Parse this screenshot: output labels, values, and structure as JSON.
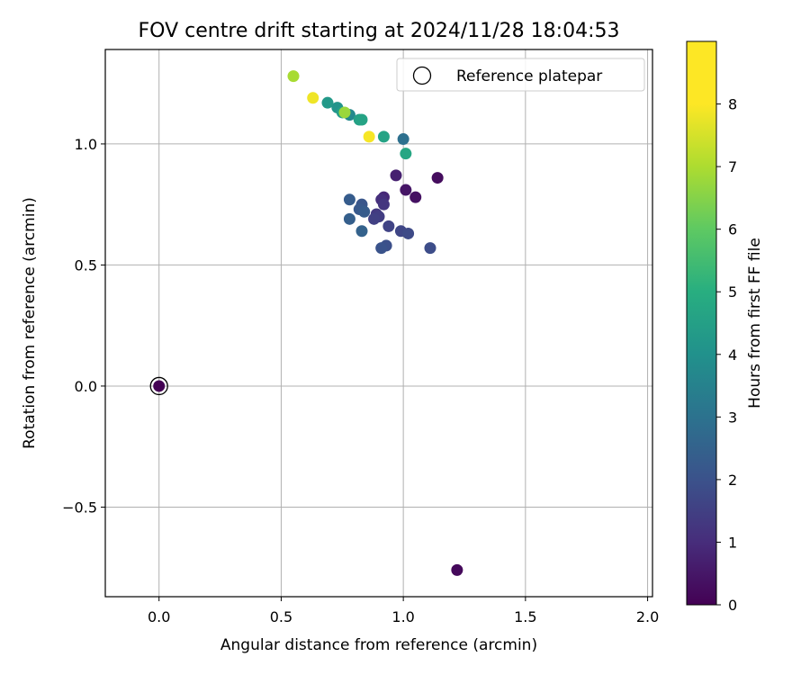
{
  "chart_data": {
    "type": "scatter",
    "title": "FOV centre drift starting at 2024/11/28 18:04:53",
    "xlabel": "Angular distance from reference (arcmin)",
    "ylabel": "Rotation from reference (arcmin)",
    "xlim": [
      -0.22,
      2.02
    ],
    "ylim": [
      -0.87,
      1.39
    ],
    "xticks": [
      0.0,
      0.5,
      1.0,
      1.5,
      2.0
    ],
    "xtick_labels": [
      "0.0",
      "0.5",
      "1.0",
      "1.5",
      "2.0"
    ],
    "yticks": [
      -0.5,
      0.0,
      0.5,
      1.0
    ],
    "ytick_labels": [
      "−0.5",
      "0.0",
      "0.5",
      "1.0"
    ],
    "grid": true,
    "legend": {
      "position": "top-right",
      "entries": [
        "Reference platepar"
      ]
    },
    "reference_point": {
      "x": 0.0,
      "y": 0.0,
      "color_value": 0.0
    },
    "colorbar": {
      "label": "Hours from first FF file",
      "colormap": "viridis",
      "range": [
        0,
        9
      ],
      "ticks": [
        0,
        1,
        2,
        3,
        4,
        5,
        6,
        7,
        8
      ],
      "tick_labels": [
        "0",
        "1",
        "2",
        "3",
        "4",
        "5",
        "6",
        "7",
        "8"
      ]
    },
    "points": [
      {
        "x": 1.22,
        "y": -0.76,
        "c": 0.2
      },
      {
        "x": 1.14,
        "y": 0.86,
        "c": 0.3
      },
      {
        "x": 1.05,
        "y": 0.78,
        "c": 0.4
      },
      {
        "x": 1.01,
        "y": 0.81,
        "c": 0.5
      },
      {
        "x": 0.97,
        "y": 0.87,
        "c": 0.8
      },
      {
        "x": 0.92,
        "y": 0.78,
        "c": 1.0
      },
      {
        "x": 0.91,
        "y": 0.77,
        "c": 1.2
      },
      {
        "x": 0.92,
        "y": 0.75,
        "c": 1.4
      },
      {
        "x": 0.89,
        "y": 0.71,
        "c": 1.5
      },
      {
        "x": 0.9,
        "y": 0.7,
        "c": 1.6
      },
      {
        "x": 0.88,
        "y": 0.69,
        "c": 1.7
      },
      {
        "x": 0.94,
        "y": 0.66,
        "c": 1.8
      },
      {
        "x": 0.99,
        "y": 0.64,
        "c": 1.9
      },
      {
        "x": 1.02,
        "y": 0.63,
        "c": 2.0
      },
      {
        "x": 1.11,
        "y": 0.57,
        "c": 2.1
      },
      {
        "x": 0.93,
        "y": 0.58,
        "c": 2.2
      },
      {
        "x": 0.91,
        "y": 0.57,
        "c": 2.3
      },
      {
        "x": 0.83,
        "y": 0.75,
        "c": 2.4
      },
      {
        "x": 0.82,
        "y": 0.73,
        "c": 2.5
      },
      {
        "x": 0.84,
        "y": 0.72,
        "c": 2.6
      },
      {
        "x": 0.78,
        "y": 0.77,
        "c": 2.6
      },
      {
        "x": 0.78,
        "y": 0.69,
        "c": 2.7
      },
      {
        "x": 0.83,
        "y": 0.64,
        "c": 2.8
      },
      {
        "x": 1.0,
        "y": 1.02,
        "c": 3.3
      },
      {
        "x": 0.78,
        "y": 1.12,
        "c": 4.2
      },
      {
        "x": 0.73,
        "y": 1.15,
        "c": 4.6
      },
      {
        "x": 0.69,
        "y": 1.17,
        "c": 4.8
      },
      {
        "x": 0.75,
        "y": 1.13,
        "c": 5.0
      },
      {
        "x": 0.82,
        "y": 1.1,
        "c": 5.1
      },
      {
        "x": 0.83,
        "y": 1.1,
        "c": 5.2
      },
      {
        "x": 0.92,
        "y": 1.03,
        "c": 5.2
      },
      {
        "x": 1.01,
        "y": 0.96,
        "c": 5.3
      },
      {
        "x": 0.76,
        "y": 1.13,
        "c": 7.6
      },
      {
        "x": 0.55,
        "y": 1.28,
        "c": 7.8
      },
      {
        "x": 0.63,
        "y": 1.19,
        "c": 8.8
      },
      {
        "x": 0.86,
        "y": 1.03,
        "c": 8.9
      }
    ]
  }
}
